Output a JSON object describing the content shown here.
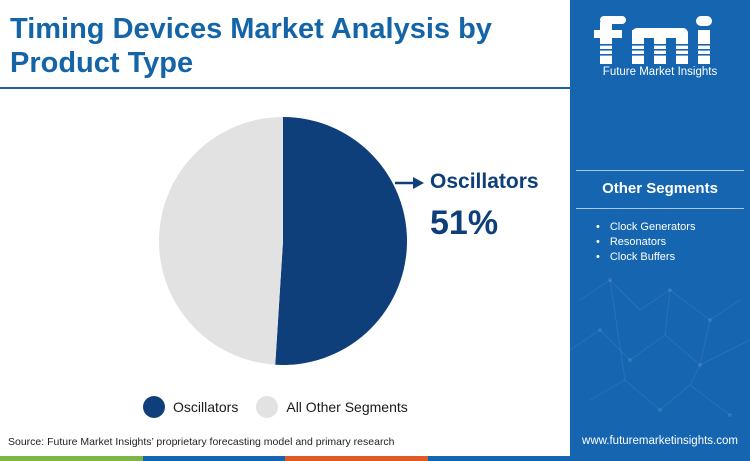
{
  "title": "Timing Devices Market Analysis by Product Type",
  "brand": {
    "name": "Future Market Insights",
    "url": "www.futuremarketinsights.com"
  },
  "colors": {
    "accent": "#1464a8",
    "oscillators": "#0f3f7a",
    "other": "#e2e2e2",
    "side_panel": "#1565b0"
  },
  "chart_data": {
    "type": "pie",
    "title": "",
    "slices": [
      {
        "label": "Oscillators",
        "value": 51,
        "color": "#0f3f7a"
      },
      {
        "label": "All Other Segments",
        "value": 49,
        "color": "#e2e2e2"
      }
    ],
    "callout": {
      "label": "Oscillators",
      "value_text": "51%"
    },
    "legend": {
      "placement": "bottom",
      "entries": [
        "Oscillators",
        "All Other Segments"
      ]
    }
  },
  "side_panel": {
    "heading": "Other Segments",
    "items": [
      "Clock Generators",
      "Resonators",
      "Clock Buffers"
    ]
  },
  "source": "Source: Future Market Insights’ proprietary forecasting model and primary research",
  "bottom_bar_colors": [
    "#7db548",
    "#1565b0",
    "#e05a27",
    "#1565b0"
  ]
}
